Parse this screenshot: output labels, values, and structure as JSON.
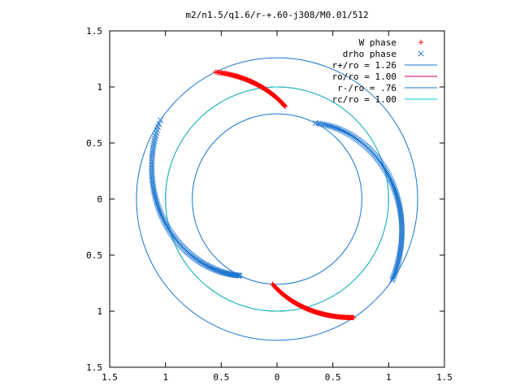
{
  "chart_data": {
    "type": "scatter",
    "title": "m2/n1.5/q1.6/r-+.60-j308/M0.01/512",
    "xlabel": "",
    "ylabel": "",
    "xlim": [
      -1.5,
      1.5
    ],
    "ylim": [
      -1.5,
      1.5
    ],
    "xticks": [
      -1.5,
      -1,
      -0.5,
      0,
      0.5,
      1,
      1.5
    ],
    "yticks": [
      -1.5,
      -1,
      -0.5,
      0,
      0.5,
      1,
      1.5
    ],
    "xtick_labels": [
      "1.5",
      "1",
      "0.5",
      "0",
      "0.5",
      "1",
      "1.5"
    ],
    "ytick_labels": [
      "1.5",
      "1",
      "0.5",
      "0",
      "0.5",
      "1",
      "1.5"
    ],
    "grid": false,
    "legend_position": "top-right",
    "series": [
      {
        "name": "W phase",
        "marker": "plus",
        "color": "#ff0000",
        "arcs": [
          {
            "center": [
              0,
              0
            ],
            "r_start": 1.26,
            "r_end": 0.83,
            "theta_start_deg": 116,
            "theta_end_deg": 85
          },
          {
            "center": [
              0,
              0
            ],
            "r_start": 0.76,
            "r_end": 1.26,
            "theta_start_deg": 267,
            "theta_end_deg": 303
          }
        ]
      },
      {
        "name": "drho phase",
        "marker": "cross",
        "color": "#1f77d0",
        "arcs": [
          {
            "center": [
              0,
              0
            ],
            "r_start": 0.76,
            "r_end": 1.26,
            "theta_start_deg": 63,
            "theta_end_deg": 325
          },
          {
            "center": [
              0,
              0
            ],
            "r_start": 1.26,
            "r_end": 0.76,
            "theta_start_deg": 146,
            "theta_end_deg": 244
          }
        ],
        "arc_directions": [
          "cw",
          "ccw"
        ]
      }
    ],
    "circles": [
      {
        "name": "r+/ro = 1.26",
        "radius": 1.26,
        "color": "#1874cd"
      },
      {
        "name": "ro/ro = 1.00",
        "radius": 1.0,
        "color": "#cc0066"
      },
      {
        "name": "r-/ro = .76",
        "radius": 0.76,
        "color": "#1874cd"
      },
      {
        "name": "rc/ro = 1.00",
        "radius": 1.0,
        "color": "#00cccc"
      }
    ]
  }
}
